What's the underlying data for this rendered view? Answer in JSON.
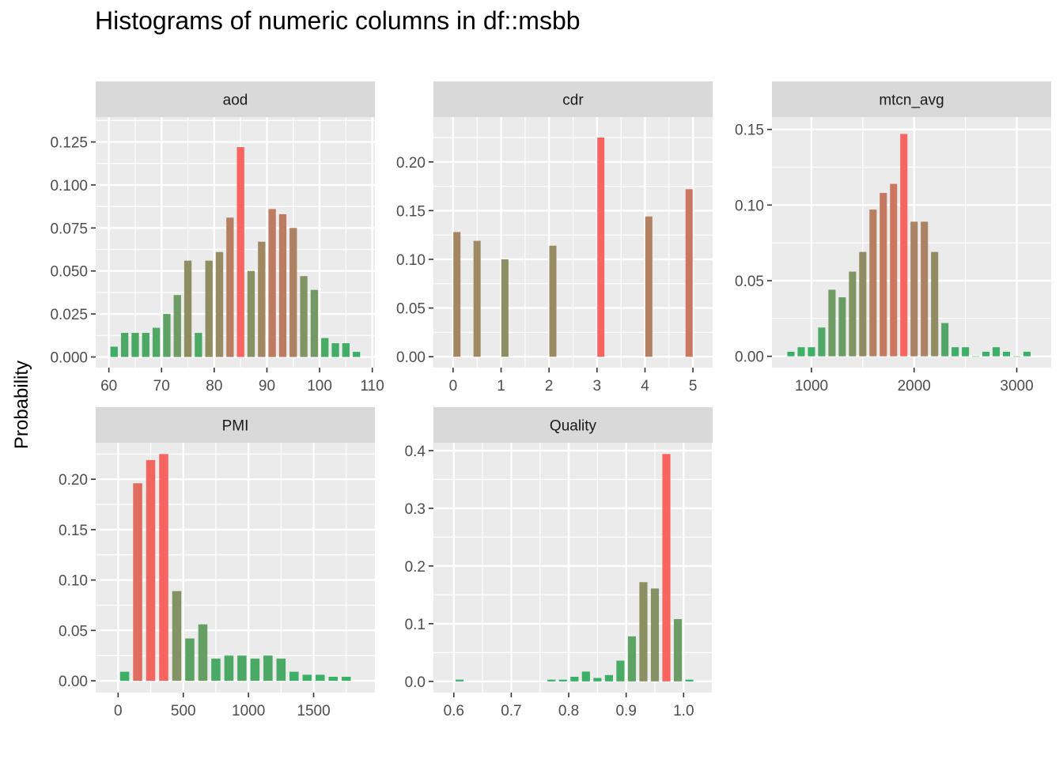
{
  "chart_data": [
    {
      "type": "bar",
      "title": "aod",
      "x": [
        61,
        63,
        65,
        67,
        69,
        71,
        73,
        75,
        77,
        79,
        81,
        83,
        85,
        87,
        89,
        91,
        93,
        95,
        97,
        99,
        101,
        103,
        105,
        107
      ],
      "values": [
        0.006,
        0.014,
        0.014,
        0.014,
        0.017,
        0.025,
        0.036,
        0.056,
        0.014,
        0.056,
        0.061,
        0.081,
        0.122,
        0.05,
        0.067,
        0.086,
        0.083,
        0.075,
        0.047,
        0.039,
        0.011,
        0.008,
        0.008,
        0.003
      ],
      "xlim": [
        57.5,
        110.5
      ],
      "ylim": [
        -0.0062,
        0.1395
      ],
      "xticks": [
        60,
        70,
        80,
        90,
        100,
        110
      ],
      "xtick_labels": [
        "60",
        "70",
        "80",
        "90",
        "100",
        "110"
      ],
      "yticks": [
        0,
        0.025,
        0.05,
        0.075,
        0.1,
        0.125
      ],
      "ytick_labels": [
        "0.000",
        "0.025",
        "0.050",
        "0.075",
        "0.100",
        "0.125"
      ]
    },
    {
      "type": "bar",
      "title": "cdr",
      "x": [
        0.08,
        0.5,
        1.08,
        2.08,
        3.08,
        4.08,
        4.92
      ],
      "values": [
        0.128,
        0.119,
        0.1,
        0.114,
        0.225,
        0.144,
        0.172
      ],
      "xlim": [
        -0.41,
        5.41
      ],
      "ylim": [
        -0.0112,
        0.2461
      ],
      "xticks": [
        0,
        1,
        2,
        3,
        4,
        5
      ],
      "xtick_labels": [
        "0",
        "1",
        "2",
        "3",
        "4",
        "5"
      ],
      "yticks": [
        0,
        0.05,
        0.1,
        0.15,
        0.2
      ],
      "ytick_labels": [
        "0.00",
        "0.05",
        "0.10",
        "0.15",
        "0.20"
      ]
    },
    {
      "type": "bar",
      "title": "mtcn_avg",
      "x": [
        800,
        900,
        1000,
        1100,
        1200,
        1300,
        1400,
        1500,
        1600,
        1700,
        1800,
        1900,
        2000,
        2100,
        2200,
        2300,
        2400,
        2500,
        2600,
        2700,
        2800,
        2900,
        3000,
        3100
      ],
      "values": [
        0.003,
        0.006,
        0.006,
        0.019,
        0.044,
        0.039,
        0.056,
        0.069,
        0.097,
        0.108,
        0.114,
        0.147,
        0.089,
        0.089,
        0.069,
        0.022,
        0.006,
        0.006,
        0,
        0.003,
        0.006,
        0.003,
        0,
        0.003
      ],
      "xlim": [
        615,
        3335
      ],
      "ylim": [
        -0.0075,
        0.1582
      ],
      "xticks": [
        1000,
        2000,
        3000
      ],
      "xtick_labels": [
        "1000",
        "2000",
        "3000"
      ],
      "yticks": [
        0,
        0.05,
        0.1,
        0.15
      ],
      "ytick_labels": [
        "0.00",
        "0.05",
        "0.10",
        "0.15"
      ]
    },
    {
      "type": "bar",
      "title": "PMI",
      "x": [
        50,
        150,
        250,
        350,
        450,
        550,
        650,
        750,
        850,
        950,
        1050,
        1150,
        1250,
        1350,
        1450,
        1550,
        1650,
        1750
      ],
      "values": [
        0.009,
        0.196,
        0.219,
        0.225,
        0.089,
        0.042,
        0.056,
        0.022,
        0.025,
        0.025,
        0.022,
        0.025,
        0.022,
        0.009,
        0.006,
        0.006,
        0.004,
        0.004
      ],
      "xlim": [
        -172,
        1970
      ],
      "ylim": [
        -0.0117,
        0.2362
      ],
      "xticks": [
        0,
        500,
        1000,
        1500
      ],
      "xtick_labels": [
        "0",
        "500",
        "1000",
        "1500"
      ],
      "yticks": [
        0,
        0.05,
        0.1,
        0.15,
        0.2
      ],
      "ytick_labels": [
        "0.00",
        "0.05",
        "0.10",
        "0.15",
        "0.20"
      ]
    },
    {
      "type": "bar",
      "title": "Quality",
      "x": [
        0.61,
        0.77,
        0.79,
        0.81,
        0.83,
        0.85,
        0.87,
        0.89,
        0.91,
        0.93,
        0.95,
        0.97,
        0.99,
        1.01
      ],
      "values": [
        0.003,
        0.003,
        0.003,
        0.008,
        0.017,
        0.006,
        0.011,
        0.036,
        0.078,
        0.172,
        0.161,
        0.394,
        0.108,
        0.003
      ],
      "xlim": [
        0.5645,
        1.0505
      ],
      "ylim": [
        -0.0194,
        0.4136
      ],
      "xticks": [
        0.6,
        0.7,
        0.8,
        0.9,
        1.0
      ],
      "xtick_labels": [
        "0.6",
        "0.7",
        "0.8",
        "0.9",
        "1.0"
      ],
      "yticks": [
        0,
        0.1,
        0.2,
        0.3,
        0.4
      ],
      "ytick_labels": [
        "0.0",
        "0.1",
        "0.2",
        "0.3",
        "0.4"
      ]
    }
  ],
  "title": "Histograms of numeric columns in df::msbb",
  "ylabel": "Probability",
  "colors": {
    "low": "#36B266",
    "high": "#F8645F",
    "panel_bg": "#EBEBEB",
    "strip_bg": "#D9D9D9",
    "grid": "#FFFFFF",
    "tick_text": "#4D4D4D"
  },
  "grid": true
}
